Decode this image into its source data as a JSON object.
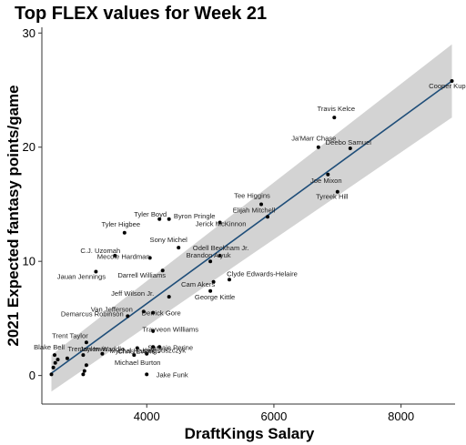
{
  "chart_data": {
    "type": "scatter",
    "title": "Top FLEX values for Week 21",
    "xlabel": "DraftKings Salary",
    "ylabel": "2021 Expected fantasy points/game",
    "xlim": [
      2350,
      8850
    ],
    "ylim": [
      -2.5,
      30.5
    ],
    "xticks": [
      4000,
      6000,
      8000
    ],
    "yticks": [
      0,
      10,
      20,
      30
    ],
    "grid": false,
    "trend": {
      "method": "linear fit with confidence band",
      "x": [
        2500,
        8800
      ],
      "y": [
        0.2,
        25.8
      ],
      "band_halfwidth": [
        1.6,
        3.2
      ],
      "line_color": "#1f4e79",
      "band_color": "#d3d3d3"
    },
    "points": [
      {
        "label": "Cooper Kupp",
        "x": 8800,
        "y": 25.8
      },
      {
        "label": "Travis Kelce",
        "x": 6950,
        "y": 22.6
      },
      {
        "label": "Ja'Marr Chase",
        "x": 6700,
        "y": 20.0
      },
      {
        "label": "Deebo Samuel",
        "x": 7200,
        "y": 19.9
      },
      {
        "label": "Joe Mixon",
        "x": 6850,
        "y": 17.6
      },
      {
        "label": "Tyreek Hill",
        "x": 7000,
        "y": 16.1
      },
      {
        "label": "Tee Higgins",
        "x": 5800,
        "y": 15.0
      },
      {
        "label": "Elijah Mitchell",
        "x": 5900,
        "y": 13.9
      },
      {
        "label": "Tyler Boyd",
        "x": 4200,
        "y": 13.7
      },
      {
        "label": "Byron Pringle",
        "x": 4350,
        "y": 13.7
      },
      {
        "label": "Jerick McKinnon",
        "x": 5150,
        "y": 13.4
      },
      {
        "label": "Tyler Higbee",
        "x": 3650,
        "y": 12.5
      },
      {
        "label": "Sony Michel",
        "x": 4500,
        "y": 11.2
      },
      {
        "label": "Odell Beckham Jr.",
        "x": 5150,
        "y": 10.5
      },
      {
        "label": "C.J. Uzomah",
        "x": 3500,
        "y": 10.5
      },
      {
        "label": "Mecole Hardman",
        "x": 4050,
        "y": 10.3
      },
      {
        "label": "Brandon Aiyuk",
        "x": 5000,
        "y": 10.0
      },
      {
        "label": "Jauan Jennings",
        "x": 3200,
        "y": 9.1
      },
      {
        "label": "Darrell Williams",
        "x": 4250,
        "y": 9.2
      },
      {
        "label": "Clyde Edwards-Helaire",
        "x": 5300,
        "y": 8.4
      },
      {
        "label": "Cam Akers",
        "x": 5050,
        "y": 8.2
      },
      {
        "label": "George Kittle",
        "x": 5000,
        "y": 7.4
      },
      {
        "label": "Jeff Wilson Jr.",
        "x": 4350,
        "y": 6.9
      },
      {
        "label": "Derrick Gore",
        "x": 4100,
        "y": 5.5
      },
      {
        "label": "Van Jefferson",
        "x": 3950,
        "y": 5.6
      },
      {
        "label": "Demarcus Robinson",
        "x": 3700,
        "y": 5.2
      },
      {
        "label": "Trayveon Williams",
        "x": 4100,
        "y": 3.9
      },
      {
        "label": "Trent Taylor",
        "x": 3050,
        "y": 2.9
      },
      {
        "label": "Chris Evans",
        "x": 3850,
        "y": 2.4
      },
      {
        "label": "Kyle Juszczyk",
        "x": 4100,
        "y": 2.5
      },
      {
        "label": "Blake Bell",
        "x": 2550,
        "y": 1.8
      },
      {
        "label": "Trenton Irwin",
        "x": 3000,
        "y": 1.8
      },
      {
        "label": "Jaylen Waddle",
        "x": 3300,
        "y": 1.9
      },
      {
        "label": "Mychal Hastings",
        "x": 3800,
        "y": 1.8
      },
      {
        "label": "Samaje Perine",
        "x": 4200,
        "y": 2.5
      },
      {
        "label": "Michael Burton",
        "x": 4000,
        "y": 1.9
      },
      {
        "label": "Jake Funk",
        "x": 4000,
        "y": 0.1
      },
      {
        "label": "",
        "x": 2500,
        "y": 0.1
      },
      {
        "label": "",
        "x": 2530,
        "y": 0.7
      },
      {
        "label": "",
        "x": 2560,
        "y": 1.1
      },
      {
        "label": "",
        "x": 2600,
        "y": 1.4
      },
      {
        "label": "",
        "x": 2750,
        "y": 1.5
      },
      {
        "label": "",
        "x": 3000,
        "y": 0.1
      },
      {
        "label": "",
        "x": 3020,
        "y": 0.4
      },
      {
        "label": "",
        "x": 3050,
        "y": 0.9
      }
    ]
  }
}
